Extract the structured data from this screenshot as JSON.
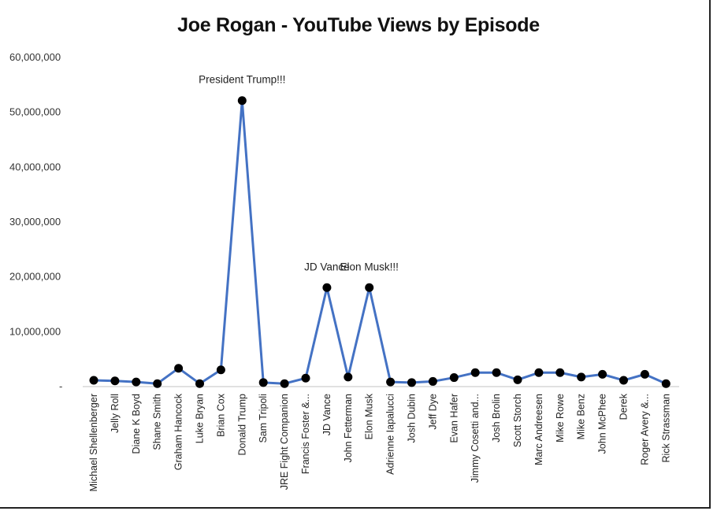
{
  "chart_data": {
    "type": "line",
    "title": "Joe Rogan - YouTube Views by Episode",
    "xlabel": "",
    "ylabel": "",
    "ylim": [
      0,
      60000000
    ],
    "yticks": [
      0,
      10000000,
      20000000,
      30000000,
      40000000,
      50000000,
      60000000
    ],
    "ytick_labels": [
      "-",
      "10,000,000",
      "20,000,000",
      "30,000,000",
      "40,000,000",
      "50,000,000",
      "60,000,000"
    ],
    "grid": false,
    "categories": [
      "Michael Shellenberger",
      "Jelly Roll",
      "Diane K Boyd",
      "Shane Smith",
      "Graham Hancock",
      "Luke Bryan",
      "Brian Cox",
      "Donald Trump",
      "Sam Tripoli",
      "JRE Fight Companion",
      "Francis Foster &...",
      "JD Vance",
      "John Fetterman",
      "Elon Musk",
      "Adrienne Iapalucci",
      "Josh Dubin",
      "Jeff Dye",
      "Evan Hafer",
      "Jimmy Cosetti and...",
      "Josh Brolin",
      "Scott Storch",
      "Marc Andreesen",
      "Mike Rowe",
      "Mike Benz",
      "John McPhee",
      "Derek",
      "Roger Avery &...",
      "Rick Strassman"
    ],
    "series": [
      {
        "name": "YouTube Views",
        "color": "#4472c4",
        "values": [
          1000000,
          900000,
          700000,
          400000,
          3200000,
          400000,
          2900000,
          52000000,
          600000,
          400000,
          1400000,
          17900000,
          1600000,
          17900000,
          700000,
          600000,
          800000,
          1500000,
          2400000,
          2400000,
          1100000,
          2400000,
          2400000,
          1600000,
          2100000,
          1000000,
          2100000,
          400000
        ]
      }
    ],
    "annotations": [
      {
        "category": "Donald Trump",
        "text": "President Trump!!!"
      },
      {
        "category": "JD Vance",
        "text": "JD Vance"
      },
      {
        "category": "Elon Musk",
        "text": "Elon Musk!!!"
      }
    ]
  }
}
